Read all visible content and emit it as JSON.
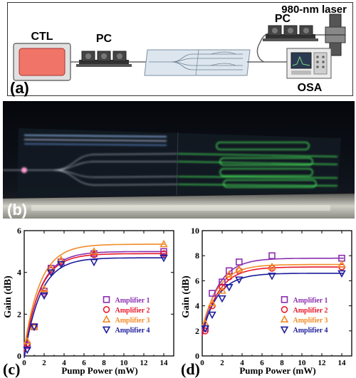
{
  "panel_a": {
    "label": "(a)",
    "ctl_label": "CTL",
    "pc_left_label": "PC",
    "pc_right_label": "PC",
    "laser_label": "980-nm laser",
    "osa_label": "OSA"
  },
  "panel_b": {
    "label": "(b)"
  },
  "colors": {
    "amp1": "#8a2fb0",
    "amp2": "#e8192c",
    "amp3": "#f28c28",
    "amp4": "#1d1d9b"
  },
  "chart_data": [
    {
      "type": "scatter",
      "panel_label": "(c)",
      "xlabel": "Pump Power (mW)",
      "ylabel": "Gain (dB)",
      "xlim": [
        0,
        15
      ],
      "ylim": [
        0,
        6
      ],
      "xticks": [
        "0",
        "2",
        "4",
        "6",
        "8",
        "10",
        "12",
        "14"
      ],
      "yticks": [
        "0",
        "2",
        "4",
        "6"
      ],
      "legend_position": "center-right",
      "series": [
        {
          "name": "Amplifier 1",
          "marker": "square",
          "x": [
            0.3,
            1,
            2,
            2.7,
            3.7,
            7,
            14
          ],
          "y": [
            0.5,
            1.4,
            3.1,
            4.2,
            4.5,
            4.9,
            5.0
          ]
        },
        {
          "name": "Amplifier 2",
          "marker": "circle",
          "x": [
            0.3,
            1,
            2,
            2.7,
            3.7,
            7,
            14
          ],
          "y": [
            0.6,
            1.4,
            3.0,
            4.1,
            4.5,
            4.85,
            4.9
          ]
        },
        {
          "name": "Amplifier 3",
          "marker": "triangle-up",
          "x": [
            0.3,
            1,
            2,
            2.7,
            3.7,
            7,
            14
          ],
          "y": [
            0.7,
            1.4,
            3.2,
            4.2,
            4.6,
            5.0,
            5.35
          ]
        },
        {
          "name": "Amplifier 4",
          "marker": "triangle-down",
          "x": [
            0.3,
            1,
            2,
            2.7,
            3.7,
            7,
            14
          ],
          "y": [
            0.3,
            1.4,
            2.9,
            4.0,
            4.4,
            4.5,
            4.7
          ]
        }
      ]
    },
    {
      "type": "scatter",
      "panel_label": "(d)",
      "xlabel": "Pump Power (mW)",
      "ylabel": "Gain (dB)",
      "xlim": [
        0,
        15
      ],
      "ylim": [
        0,
        10
      ],
      "xticks": [
        "0",
        "2",
        "4",
        "6",
        "8",
        "10",
        "12",
        "14"
      ],
      "yticks": [
        "0",
        "2",
        "4",
        "6",
        "8",
        "10"
      ],
      "legend_position": "center-right",
      "series": [
        {
          "name": "Amplifier 1",
          "marker": "square",
          "x": [
            0.3,
            1,
            2,
            2.7,
            3.7,
            7,
            14
          ],
          "y": [
            2.2,
            5.0,
            5.9,
            6.8,
            7.5,
            8.0,
            7.8
          ]
        },
        {
          "name": "Amplifier 2",
          "marker": "circle",
          "x": [
            0.3,
            1,
            2,
            2.7,
            3.7,
            7,
            14
          ],
          "y": [
            2.0,
            4.0,
            5.5,
            6.3,
            6.8,
            7.0,
            7.1
          ]
        },
        {
          "name": "Amplifier 3",
          "marker": "triangle-up",
          "x": [
            0.3,
            1,
            2,
            2.7,
            3.7,
            7,
            14
          ],
          "y": [
            2.6,
            4.2,
            5.2,
            6.5,
            6.9,
            7.1,
            7.3
          ]
        },
        {
          "name": "Amplifier 4",
          "marker": "triangle-down",
          "x": [
            0.3,
            1,
            2,
            2.7,
            3.7,
            7,
            14
          ],
          "y": [
            2.2,
            3.3,
            4.6,
            5.5,
            6.1,
            6.4,
            6.6
          ]
        }
      ]
    }
  ]
}
